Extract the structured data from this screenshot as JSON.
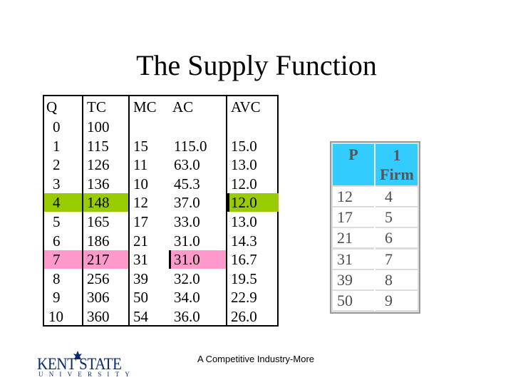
{
  "slide": {
    "title": "The Supply Function",
    "caption": "A Competitive Industry-More"
  },
  "cost_table": {
    "headers": [
      "Q",
      "TC",
      "MC",
      "AC",
      "AVC"
    ],
    "rows": [
      [
        "0",
        "100",
        "",
        "",
        ""
      ],
      [
        "1",
        "115",
        "15",
        "115.0",
        "15.0"
      ],
      [
        "2",
        "126",
        "11",
        "63.0",
        "13.0"
      ],
      [
        "3",
        "136",
        "10",
        "45.3",
        "12.0"
      ],
      [
        "4",
        "148",
        "12",
        "37.0",
        "12.0"
      ],
      [
        "5",
        "165",
        "17",
        "33.0",
        "13.0"
      ],
      [
        "6",
        "186",
        "21",
        "31.0",
        "14.3"
      ],
      [
        "7",
        "217",
        "31",
        "31.0",
        "16.7"
      ],
      [
        "8",
        "256",
        "39",
        "32.0",
        "19.5"
      ],
      [
        "9",
        "306",
        "50",
        "34.0",
        "22.9"
      ],
      [
        "10",
        "360",
        "54",
        "36.0",
        "26.0"
      ]
    ],
    "highlight_green_row": "4",
    "highlight_pink_row": "7",
    "colors": {
      "green": "#99cc00",
      "pink": "#ff99cc"
    }
  },
  "firm_table": {
    "headers": [
      "P",
      "1 Firm"
    ],
    "rows": [
      [
        "12",
        "4"
      ],
      [
        "17",
        "5"
      ],
      [
        "21",
        "6"
      ],
      [
        "31",
        "7"
      ],
      [
        "39",
        "8"
      ],
      [
        "50",
        "9"
      ]
    ],
    "colors": {
      "header": "#33ccff"
    }
  },
  "logo": {
    "name": "KENT STATE",
    "sub": "UNIVERSITY"
  }
}
